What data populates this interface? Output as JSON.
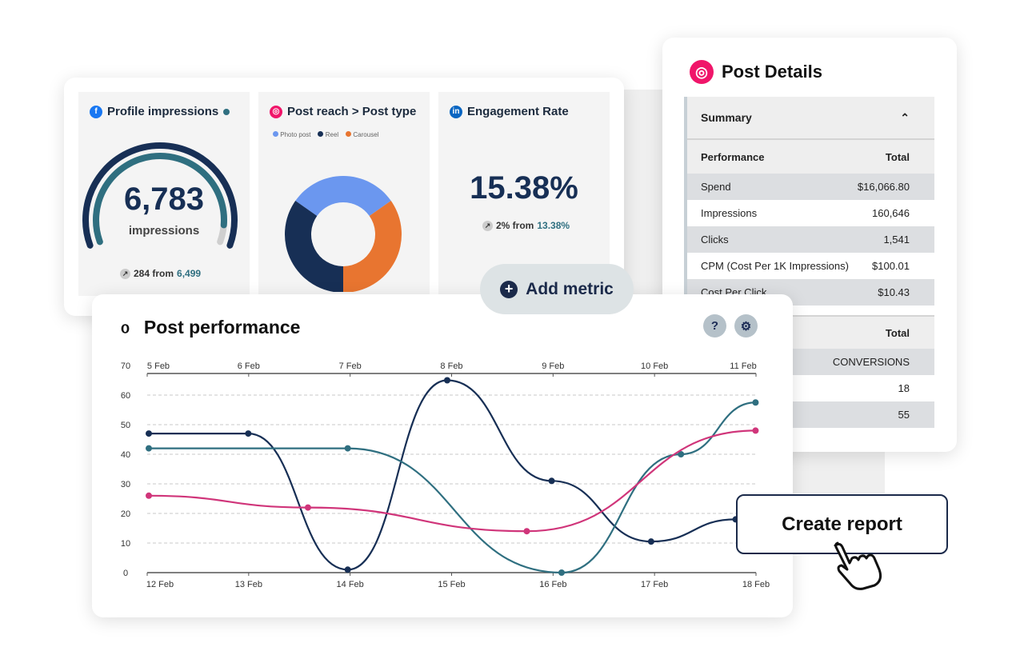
{
  "colors": {
    "navy": "#172f55",
    "teal": "#2f6f80",
    "pink": "#d0357a",
    "photo": "#6b97ef",
    "carousel": "#e87530",
    "facebook": "#1877f2",
    "instagram": "#f0166a",
    "linkedin": "#0a66c2"
  },
  "profile_impressions": {
    "title": "Profile impressions",
    "icon": "facebook-icon",
    "value": "6,783",
    "unit": "impressions",
    "gauge_fill": 0.93,
    "change": "284 from",
    "previous": "6,499"
  },
  "post_reach": {
    "title": "Post reach > Post type",
    "icon": "instagram-icon",
    "legend": [
      "Photo post",
      "Reel",
      "Carousel"
    ],
    "shares": [
      30.5,
      34.75,
      34.75
    ]
  },
  "engagement": {
    "title": "Engagement Rate",
    "icon": "linkedin-icon",
    "value": "15.38%",
    "change": "2% from",
    "previous": "13.38%"
  },
  "add_metric": "Add metric",
  "create_report": "Create report",
  "post_details": {
    "title": "Post Details",
    "summary": "Summary",
    "header": [
      "Performance",
      "Total"
    ],
    "rows": [
      [
        "Spend",
        "$16,066.80"
      ],
      [
        "Impressions",
        "160,646"
      ],
      [
        "Clicks",
        "1,541"
      ],
      [
        "CPM (Cost Per 1K Impressions)",
        "$100.01"
      ],
      [
        "Cost Per Click",
        "$10.43"
      ]
    ],
    "header2": [
      "",
      "Total"
    ],
    "rows2": [
      [
        "",
        "CONVERSIONS"
      ],
      [
        "",
        "18"
      ],
      [
        "",
        "55"
      ]
    ]
  },
  "post_performance": {
    "title": "Post performance"
  },
  "chart_data": {
    "type": "line",
    "title": "Post performance",
    "x_top_ticks": [
      "5 Feb",
      "6 Feb",
      "7 Feb",
      "8 Feb",
      "9 Feb",
      "10 Feb",
      "11 Feb"
    ],
    "x_bottom_ticks": [
      "12 Feb",
      "13 Feb",
      "14 Feb",
      "15 Feb",
      "16 Feb",
      "17 Feb",
      "18 Feb"
    ],
    "y_ticks": [
      "0",
      "10",
      "20",
      "30",
      "40",
      "50",
      "60",
      "70"
    ],
    "ylim": [
      0,
      70
    ],
    "grid": true,
    "series": [
      {
        "color": "#172f55",
        "points": [
          [
            12,
            47
          ],
          [
            13,
            47
          ],
          [
            14,
            1
          ],
          [
            15,
            65
          ],
          [
            16.05,
            31
          ],
          [
            17.05,
            10.5
          ],
          [
            17.9,
            18
          ]
        ]
      },
      {
        "color": "#2f6f80",
        "points": [
          [
            12,
            42
          ],
          [
            14,
            42
          ],
          [
            16.15,
            0
          ],
          [
            17.35,
            40
          ],
          [
            18.1,
            57.5
          ]
        ]
      },
      {
        "color": "#d0357a",
        "points": [
          [
            12,
            26
          ],
          [
            13.6,
            22
          ],
          [
            15.8,
            14
          ],
          [
            18.1,
            48
          ]
        ]
      }
    ]
  }
}
